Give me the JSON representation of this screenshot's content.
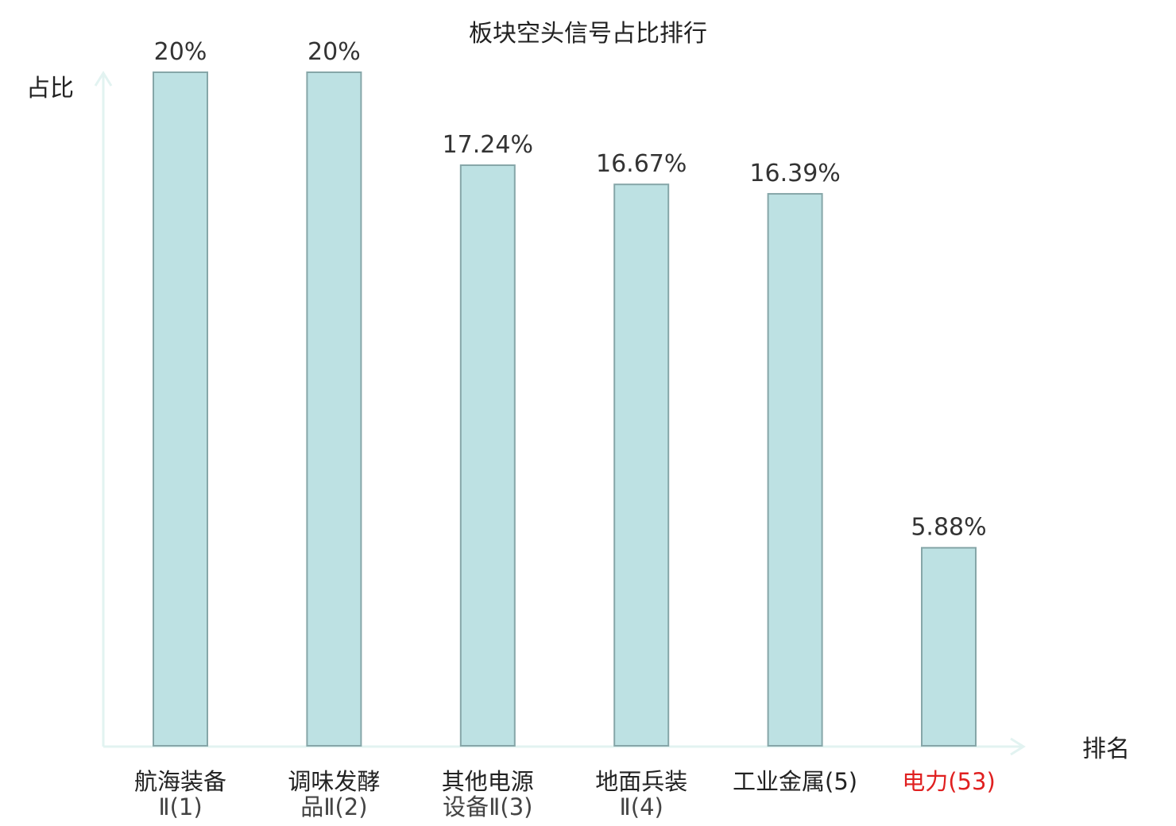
{
  "chart_data": {
    "type": "bar",
    "title": "板块空头信号占比排行",
    "ylabel": "占比",
    "xlabel": "排名",
    "ylim": [
      0,
      20
    ],
    "grid": false,
    "legend": "none",
    "categories": [
      {
        "line1": "航海装备",
        "line2": "Ⅱ(1)",
        "highlight": false
      },
      {
        "line1": "调味发酵",
        "line2": "品Ⅱ(2)",
        "highlight": false
      },
      {
        "line1": "其他电源",
        "line2": "设备Ⅱ(3)",
        "highlight": false
      },
      {
        "line1": "地面兵装",
        "line2": "Ⅱ(4)",
        "highlight": false
      },
      {
        "line1": "工业金属(5)",
        "line2": "",
        "highlight": false
      },
      {
        "line1": "电力(53)",
        "line2": "",
        "highlight": true
      }
    ],
    "values": [
      20,
      20,
      17.24,
      16.67,
      16.39,
      5.88
    ],
    "value_labels": [
      "20%",
      "20%",
      "17.24%",
      "16.67%",
      "16.39%",
      "5.88%"
    ]
  },
  "colors": {
    "bar_fill": "#bde1e3",
    "bar_stroke": "#86a6a8",
    "axis": "#e2f3f1",
    "text": "#222222",
    "highlight": "#e02020"
  }
}
